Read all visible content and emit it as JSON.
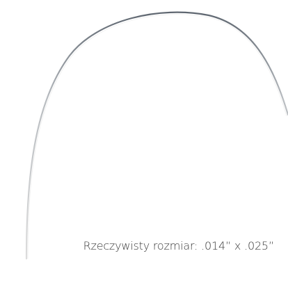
{
  "caption": "Rzeczywisty rozmiar: .014” x .025”"
}
